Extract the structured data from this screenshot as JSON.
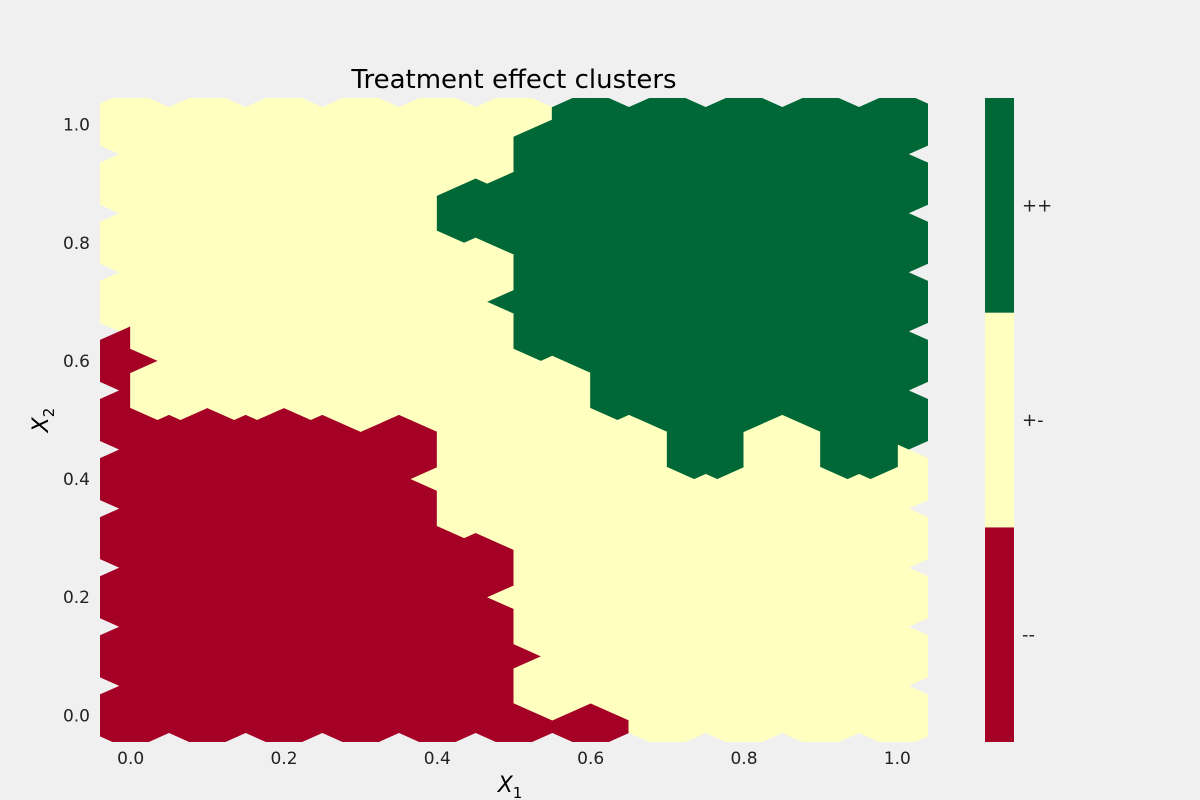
{
  "chart_data": {
    "type": "heatmap",
    "subtype": "hexbin",
    "title": "Treatment effect clusters",
    "xlabel": "X",
    "xlabel_sub": "1",
    "ylabel": "X",
    "ylabel_sub": "2",
    "xlim": [
      -0.04,
      1.04
    ],
    "ylim": [
      -0.045,
      1.045
    ],
    "xticks": [
      0.0,
      0.2,
      0.4,
      0.6,
      0.8,
      1.0
    ],
    "xtick_labels": [
      "0.0",
      "0.2",
      "0.4",
      "0.6",
      "0.8",
      "1.0"
    ],
    "yticks": [
      0.0,
      0.2,
      0.4,
      0.6,
      0.8,
      1.0
    ],
    "ytick_labels": [
      "0.0",
      "0.2",
      "0.4",
      "0.6",
      "0.8",
      "1.0"
    ],
    "grid": true,
    "hex_gridsize": 10,
    "hex_centers_x_even_rows": [
      0.0,
      0.1,
      0.2,
      0.3,
      0.4,
      0.5,
      0.6,
      0.7,
      0.8,
      0.9,
      1.0
    ],
    "hex_centers_x_odd_rows": [
      0.05,
      0.15,
      0.25,
      0.35,
      0.45,
      0.55,
      0.65,
      0.75,
      0.85,
      0.95
    ],
    "hex_centers_y": [
      0.0,
      0.1,
      0.2,
      0.3,
      0.4,
      0.5,
      0.6,
      0.7,
      0.8,
      0.9,
      1.0,
      0.05,
      0.15,
      0.25,
      0.35,
      0.45,
      0.55,
      0.65,
      0.75,
      0.85,
      0.95
    ],
    "categories": [
      "--",
      "+-",
      "++"
    ],
    "colors": {
      "--": "#a50026",
      "+-": "#ffffbf",
      "++": "#006837"
    },
    "colorbar_position": "right",
    "cluster_grid_description": "rows ordered from top (y=1.0) to bottom (y=0.0)",
    "cells_even_rows": {
      "y_values": [
        1.0,
        0.9,
        0.8,
        0.7,
        0.6,
        0.5,
        0.4,
        0.3,
        0.2,
        0.1,
        0.0
      ],
      "rows": [
        [
          "+-",
          "+-",
          "+-",
          "+-",
          "+-",
          "+-",
          "++",
          "++",
          "++",
          "++",
          "++"
        ],
        [
          "+-",
          "+-",
          "+-",
          "+-",
          "+-",
          "++",
          "++",
          "++",
          "++",
          "++",
          "++"
        ],
        [
          "+-",
          "+-",
          "+-",
          "+-",
          "+-",
          "++",
          "++",
          "++",
          "++",
          "++",
          "++"
        ],
        [
          "+-",
          "+-",
          "+-",
          "+-",
          "+-",
          "++",
          "++",
          "++",
          "++",
          "++",
          "++"
        ],
        [
          "--",
          "+-",
          "+-",
          "+-",
          "+-",
          "+-",
          "++",
          "++",
          "++",
          "++",
          "++"
        ],
        [
          "--",
          "--",
          "--",
          "+-",
          "+-",
          "+-",
          "+-",
          "++",
          "++",
          "++",
          "++"
        ],
        [
          "--",
          "--",
          "--",
          "--",
          "+-",
          "+-",
          "+-",
          "+-",
          "+-",
          "+-",
          "+-"
        ],
        [
          "--",
          "--",
          "--",
          "--",
          "--",
          "+-",
          "+-",
          "+-",
          "+-",
          "+-",
          "+-"
        ],
        [
          "--",
          "--",
          "--",
          "--",
          "--",
          "+-",
          "+-",
          "+-",
          "+-",
          "+-",
          "+-"
        ],
        [
          "--",
          "--",
          "--",
          "--",
          "--",
          "--",
          "+-",
          "+-",
          "+-",
          "+-",
          "+-"
        ],
        [
          "--",
          "--",
          "--",
          "--",
          "--",
          "--",
          "--",
          "+-",
          "+-",
          "+-",
          "+-"
        ]
      ]
    },
    "cells_odd_rows": {
      "y_values": [
        0.95,
        0.85,
        0.75,
        0.65,
        0.55,
        0.45,
        0.35,
        0.25,
        0.15,
        0.05
      ],
      "rows": [
        [
          "+-",
          "+-",
          "+-",
          "+-",
          "+-",
          "++",
          "++",
          "++",
          "++",
          "++"
        ],
        [
          "+-",
          "+-",
          "+-",
          "+-",
          "++",
          "++",
          "++",
          "++",
          "++",
          "++"
        ],
        [
          "+-",
          "+-",
          "+-",
          "+-",
          "+-",
          "++",
          "++",
          "++",
          "++",
          "++"
        ],
        [
          "+-",
          "+-",
          "+-",
          "+-",
          "+-",
          "++",
          "++",
          "++",
          "++",
          "++"
        ],
        [
          "+-",
          "+-",
          "+-",
          "+-",
          "+-",
          "+-",
          "++",
          "++",
          "++",
          "++"
        ],
        [
          "--",
          "--",
          "--",
          "--",
          "+-",
          "+-",
          "+-",
          "++",
          "+-",
          "++"
        ],
        [
          "--",
          "--",
          "--",
          "--",
          "+-",
          "+-",
          "+-",
          "+-",
          "+-",
          "+-"
        ],
        [
          "--",
          "--",
          "--",
          "--",
          "--",
          "+-",
          "+-",
          "+-",
          "+-",
          "+-"
        ],
        [
          "--",
          "--",
          "--",
          "--",
          "--",
          "+-",
          "+-",
          "+-",
          "+-",
          "+-"
        ],
        [
          "--",
          "--",
          "--",
          "--",
          "--",
          "+-",
          "+-",
          "+-",
          "+-",
          "+-"
        ]
      ]
    }
  }
}
